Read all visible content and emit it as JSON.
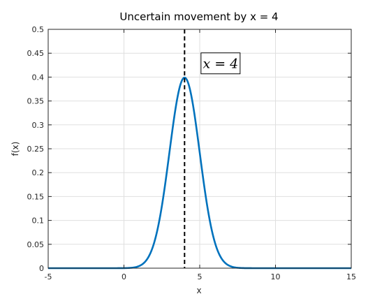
{
  "chart_data": {
    "type": "line",
    "title": "Uncertain movement by x = 4",
    "xlabel": "x",
    "ylabel": "f(x)",
    "xlim": [
      -5,
      15
    ],
    "ylim": [
      0,
      0.5
    ],
    "x_ticks": [
      -5,
      0,
      5,
      10,
      15
    ],
    "y_ticks": [
      0,
      0.05,
      0.1,
      0.15,
      0.2,
      0.25,
      0.3,
      0.35,
      0.4,
      0.45,
      0.5
    ],
    "x_tick_labels": [
      "-5",
      "0",
      "5",
      "10",
      "15"
    ],
    "y_tick_labels": [
      "0",
      "0.05",
      "0.1",
      "0.15",
      "0.2",
      "0.25",
      "0.3",
      "0.35",
      "0.4",
      "0.45",
      "0.5"
    ],
    "grid": true,
    "series": [
      {
        "x": [
          -5,
          -4,
          -3,
          -2,
          -1,
          0,
          0.5,
          1,
          1.5,
          2,
          2.5,
          3,
          3.5,
          4,
          4.5,
          5,
          5.5,
          6,
          6.5,
          7,
          7.5,
          8,
          9,
          10,
          11,
          12,
          13,
          14,
          15
        ],
        "values": [
          0,
          0,
          0,
          0,
          0,
          0.0001,
          0.0009,
          0.0044,
          0.0175,
          0.054,
          0.1295,
          0.242,
          0.3521,
          0.3989,
          0.3521,
          0.242,
          0.1295,
          0.054,
          0.0175,
          0.0044,
          0.0009,
          0.0001,
          0,
          0,
          0,
          0,
          0,
          0,
          0
        ],
        "color": "#0072BD"
      }
    ],
    "vline": {
      "x": 4,
      "style": "dashed",
      "color": "#000000"
    },
    "annotation": {
      "text": "x = 4",
      "x": 5.5,
      "y": 0.42
    }
  }
}
